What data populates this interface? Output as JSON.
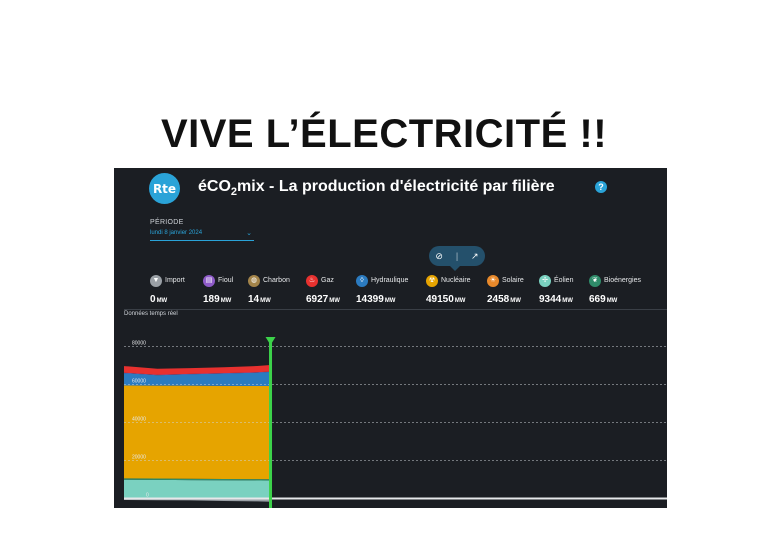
{
  "slide": {
    "title": "VIVE L’ÉLECTRICITÉ !!"
  },
  "app": {
    "logo_text": "Rte",
    "title_pre": "éCO",
    "title_sub": "2",
    "title_post": "mix - La production d'électricité par filière",
    "help_icon": "?"
  },
  "period": {
    "label": "PÉRIODE",
    "value": "lundi 8 janvier 2024"
  },
  "view_toggle": {
    "icons": [
      "eye-off-icon",
      "trend-icon"
    ]
  },
  "sources": [
    {
      "name": "Import",
      "value": "0",
      "unit": "MW",
      "color": "#9aa0a6",
      "icon": "import-icon"
    },
    {
      "name": "Fioul",
      "value": "189",
      "unit": "MW",
      "color": "#8e5bc8",
      "icon": "fuel-icon"
    },
    {
      "name": "Charbon",
      "value": "14",
      "unit": "MW",
      "color": "#a3844a",
      "icon": "coal-icon"
    },
    {
      "name": "Gaz",
      "value": "6927",
      "unit": "MW",
      "color": "#e8312f",
      "icon": "gas-icon"
    },
    {
      "name": "Hydraulique",
      "value": "14399",
      "unit": "MW",
      "color": "#2b7bc0",
      "icon": "water-icon"
    },
    {
      "name": "Nucléaire",
      "value": "49150",
      "unit": "MW",
      "color": "#e6a400",
      "icon": "nuclear-icon"
    },
    {
      "name": "Solaire",
      "value": "2458",
      "unit": "MW",
      "color": "#e8892b",
      "icon": "sun-icon"
    },
    {
      "name": "Éolien",
      "value": "9344",
      "unit": "MW",
      "color": "#7ad1c0",
      "icon": "wind-icon"
    },
    {
      "name": "Bioénergies",
      "value": "669",
      "unit": "MW",
      "color": "#2f8c6a",
      "icon": "leaf-icon"
    }
  ],
  "chart_label": "Données temps réel",
  "chart_data": {
    "type": "area",
    "stacked": true,
    "yticks": [
      "80000",
      "60000",
      "40000",
      "20000",
      "0"
    ],
    "ylim": [
      -5000,
      85000
    ],
    "x_fraction": [
      0,
      0.1,
      0.2,
      0.3,
      0.4,
      0.5,
      0.6,
      0.7,
      0.8,
      0.9,
      1.0
    ],
    "current_time_fraction": 0.44,
    "series": [
      {
        "name": "Import",
        "color": "#9aa0a6",
        "values": [
          -800,
          -900,
          -1000,
          -1300,
          -1500,
          -2000,
          -2500,
          -3000,
          -2500,
          -2000,
          -2000
        ]
      },
      {
        "name": "Éolien",
        "color": "#7ad1c0",
        "values": [
          9900,
          9800,
          9700,
          9600,
          9500,
          9400,
          9300,
          9300,
          9344,
          9344,
          9344
        ]
      },
      {
        "name": "Bioénergies",
        "color": "#2f8c6a",
        "values": [
          700,
          700,
          690,
          690,
          680,
          680,
          675,
          670,
          669,
          669,
          669
        ]
      },
      {
        "name": "Solaire",
        "color": "#e8892b",
        "values": [
          0,
          0,
          0,
          0,
          0,
          0,
          0,
          0,
          400,
          1500,
          2458
        ]
      },
      {
        "name": "Nucléaire",
        "color": "#e6a400",
        "values": [
          48900,
          48900,
          49000,
          49000,
          49050,
          49100,
          49100,
          49100,
          49150,
          49150,
          49150
        ]
      },
      {
        "name": "Hydraulique",
        "color": "#2b7bc0",
        "values": [
          6500,
          5500,
          6000,
          6500,
          7000,
          8000,
          9500,
          11000,
          12500,
          13800,
          14399
        ]
      },
      {
        "name": "Charbon",
        "color": "#a3844a",
        "values": [
          14,
          14,
          14,
          14,
          14,
          14,
          14,
          14,
          14,
          14,
          14
        ]
      },
      {
        "name": "Fioul",
        "color": "#8e5bc8",
        "values": [
          189,
          189,
          189,
          189,
          189,
          189,
          189,
          189,
          189,
          189,
          189
        ]
      },
      {
        "name": "Gaz",
        "color": "#e8312f",
        "values": [
          3500,
          3200,
          3000,
          3100,
          3300,
          3700,
          4300,
          5000,
          5800,
          6500,
          6927
        ]
      }
    ]
  }
}
